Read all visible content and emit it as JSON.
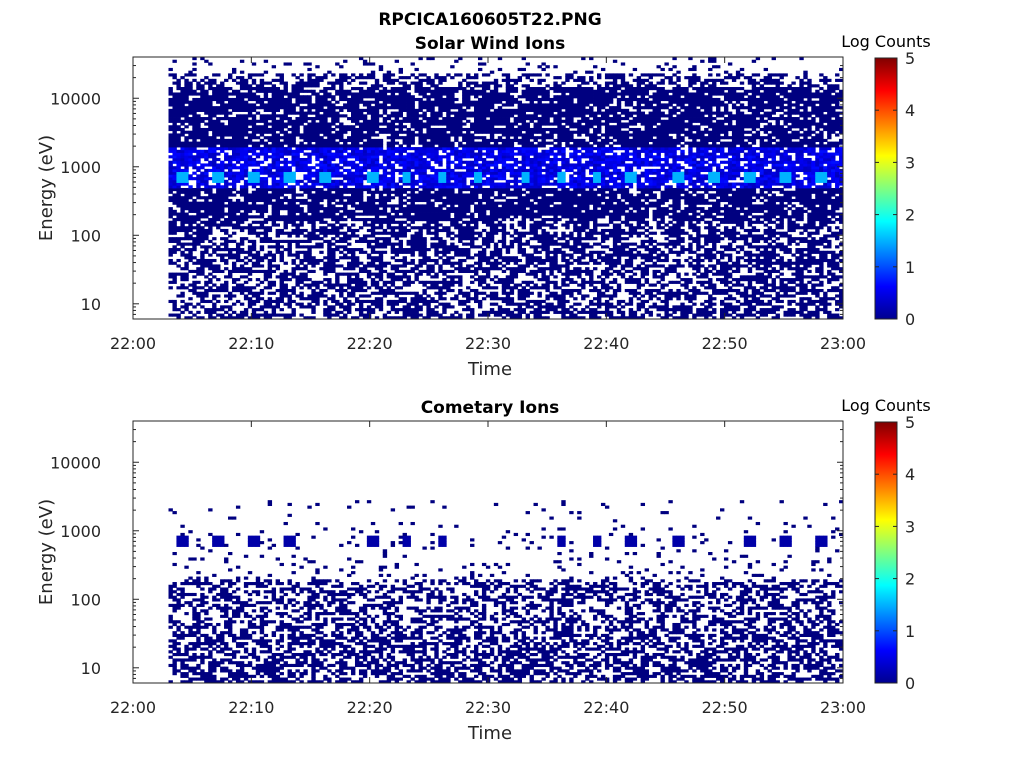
{
  "figure": {
    "title": "RPCICA160605T22.PNG"
  },
  "colors": {
    "colormap": "jet",
    "data_dark_blue": "#00008f",
    "axis": "#262626"
  },
  "chart_data": [
    {
      "type": "heatmap",
      "title": "Solar Wind Ions",
      "xlabel": "Time",
      "ylabel": "Energy (eV)",
      "x_ticks": [
        "22:00",
        "22:10",
        "22:20",
        "22:30",
        "22:40",
        "22:50",
        "23:00"
      ],
      "x_range": [
        "22:00",
        "23:00"
      ],
      "data_start": "22:03",
      "data_end": "23:00",
      "y_scale": "log",
      "y_ticks": [
        10,
        100,
        1000,
        10000
      ],
      "y_tick_labels": [
        "10",
        "100",
        "1000",
        "10000"
      ],
      "y_range": [
        6,
        40000
      ],
      "colorbar": {
        "label": "Log Counts",
        "range": [
          0,
          5
        ],
        "ticks": [
          "0",
          "1",
          "2",
          "3",
          "4",
          "5"
        ]
      },
      "peak_energy_eV": 700,
      "peak_log_counts": 1.5,
      "peak_times": [
        "22:04",
        "22:07",
        "22:10",
        "22:13",
        "22:16",
        "22:20",
        "22:23",
        "22:26",
        "22:29",
        "22:33",
        "22:36",
        "22:39",
        "22:42",
        "22:46",
        "22:49",
        "22:52",
        "22:55",
        "22:58"
      ]
    },
    {
      "type": "heatmap",
      "title": "Cometary Ions",
      "xlabel": "Time",
      "ylabel": "Energy (eV)",
      "x_ticks": [
        "22:00",
        "22:10",
        "22:20",
        "22:30",
        "22:40",
        "22:50",
        "23:00"
      ],
      "x_range": [
        "22:00",
        "23:00"
      ],
      "data_start": "22:03",
      "data_end": "23:00",
      "y_scale": "log",
      "y_ticks": [
        10,
        100,
        1000,
        10000
      ],
      "y_tick_labels": [
        "10",
        "100",
        "1000",
        "10000"
      ],
      "y_range": [
        6,
        40000
      ],
      "colorbar": {
        "label": "Log Counts",
        "range": [
          0,
          5
        ],
        "ticks": [
          "0",
          "1",
          "2",
          "3",
          "4",
          "5"
        ]
      },
      "peak_energy_eV": 700,
      "peak_log_counts": 0.2,
      "peak_times": [
        "22:04",
        "22:07",
        "22:10",
        "22:13",
        "22:20",
        "22:23",
        "22:26",
        "22:36",
        "22:39",
        "22:42",
        "22:46",
        "22:52",
        "22:55",
        "22:58"
      ]
    }
  ]
}
